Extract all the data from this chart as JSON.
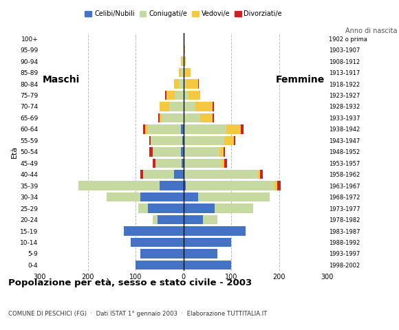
{
  "age_groups": [
    "0-4",
    "5-9",
    "10-14",
    "15-19",
    "20-24",
    "25-29",
    "30-34",
    "35-39",
    "40-44",
    "45-49",
    "50-54",
    "55-59",
    "60-64",
    "65-69",
    "70-74",
    "75-79",
    "80-84",
    "85-89",
    "90-94",
    "95-99",
    "100+"
  ],
  "birth_years": [
    "1998-2002",
    "1993-1997",
    "1988-1992",
    "1983-1987",
    "1978-1982",
    "1973-1977",
    "1968-1972",
    "1963-1967",
    "1958-1962",
    "1953-1957",
    "1948-1952",
    "1943-1947",
    "1938-1942",
    "1933-1937",
    "1928-1932",
    "1923-1927",
    "1918-1922",
    "1913-1917",
    "1908-1912",
    "1903-1907",
    "1902 o prima"
  ],
  "male": {
    "celibe": [
      100,
      90,
      110,
      125,
      55,
      75,
      90,
      50,
      20,
      4,
      5,
      3,
      5,
      0,
      0,
      0,
      0,
      0,
      0,
      0,
      0
    ],
    "coniugato": [
      0,
      0,
      0,
      0,
      10,
      20,
      70,
      170,
      65,
      55,
      60,
      65,
      70,
      45,
      30,
      18,
      10,
      5,
      3,
      0,
      0
    ],
    "vedovo": [
      0,
      0,
      0,
      0,
      0,
      0,
      0,
      0,
      0,
      0,
      0,
      0,
      5,
      5,
      20,
      18,
      10,
      5,
      2,
      0,
      0
    ],
    "divorziato": [
      0,
      0,
      0,
      0,
      0,
      0,
      0,
      0,
      5,
      5,
      6,
      3,
      5,
      3,
      0,
      2,
      0,
      0,
      0,
      0,
      0
    ]
  },
  "female": {
    "celibe": [
      100,
      70,
      100,
      130,
      40,
      65,
      30,
      5,
      0,
      0,
      0,
      0,
      0,
      0,
      0,
      0,
      0,
      0,
      0,
      0,
      0
    ],
    "coniugato": [
      0,
      0,
      0,
      0,
      30,
      80,
      150,
      185,
      155,
      80,
      75,
      85,
      90,
      35,
      25,
      10,
      5,
      3,
      0,
      0,
      0
    ],
    "vedovo": [
      0,
      0,
      0,
      0,
      0,
      0,
      0,
      5,
      5,
      5,
      8,
      20,
      30,
      25,
      35,
      25,
      25,
      12,
      5,
      3,
      2
    ],
    "divorziato": [
      0,
      0,
      0,
      0,
      0,
      0,
      0,
      8,
      5,
      6,
      4,
      3,
      5,
      3,
      3,
      0,
      2,
      0,
      0,
      0,
      0
    ]
  },
  "colors": {
    "celibe": "#4472c4",
    "coniugato": "#c5d9a0",
    "vedovo": "#f5c842",
    "divorziato": "#cc2222"
  },
  "legend_labels": [
    "Celibi/Nubili",
    "Coniugati/e",
    "Vedovi/e",
    "Divorziati/e"
  ],
  "title": "Popolazione per età, sesso e stato civile - 2003",
  "subtitle": "COMUNE DI PESCHICI (FG)  ·  Dati ISTAT 1° gennaio 2003  ·  Elaborazione TUTTITALIA.IT",
  "label_maschi": "Maschi",
  "label_femmine": "Femmine",
  "ylabel_left": "Età",
  "ylabel_right": "Anno di nascita",
  "xlim": 300,
  "xticks": [
    -300,
    -200,
    -100,
    0,
    100,
    200,
    300
  ],
  "xtick_labels": [
    "300",
    "200",
    "100",
    "0",
    "100",
    "200",
    "300"
  ],
  "background_color": "#ffffff",
  "grid_color": "#bbbbbb"
}
